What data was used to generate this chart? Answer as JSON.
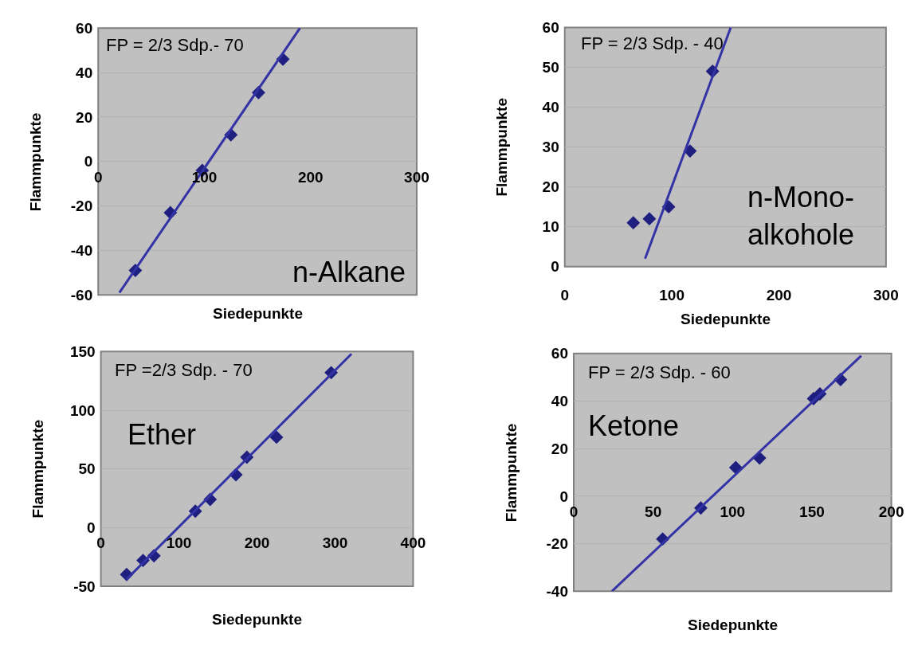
{
  "chart_data": [
    {
      "type": "scatter",
      "xlabel": "Siedepunkte",
      "ylabel": "Flammpunkte",
      "xlim": [
        0,
        300
      ],
      "ylim": [
        -60,
        60
      ],
      "xticks": [
        0,
        100,
        200,
        300
      ],
      "yticks": [
        -60,
        -40,
        -20,
        0,
        20,
        40,
        60
      ],
      "grid": "y",
      "annotations": [
        "FP = 2/3 Sdp.- 70",
        "n-Alkane"
      ],
      "series": [
        {
          "color": "#1f1f80",
          "marker": "diamond",
          "x": [
            35,
            68,
            98,
            125,
            151,
            174
          ],
          "values": [
            -49,
            -23,
            -4,
            12,
            31,
            46
          ]
        },
        {
          "type": "line",
          "color": "#3333a6",
          "x": [
            20,
            190
          ],
          "values": [
            -59,
            60
          ]
        }
      ]
    },
    {
      "type": "scatter",
      "xlabel": "Siedepunkte",
      "ylabel": "Flammpunkte",
      "xlim": [
        0,
        300
      ],
      "ylim": [
        0,
        60
      ],
      "xticks": [
        0,
        100,
        200,
        300
      ],
      "yticks": [
        0,
        10,
        20,
        30,
        40,
        50,
        60
      ],
      "grid": "y",
      "annotations": [
        "FP = 2/3 Sdp. - 40",
        "n-Mono-\nalkohole"
      ],
      "series": [
        {
          "color": "#1f1f80",
          "marker": "diamond",
          "x": [
            64,
            79,
            97,
            117,
            138
          ],
          "values": [
            11,
            12,
            15,
            29,
            49
          ]
        },
        {
          "type": "line",
          "color": "#3333a6",
          "x": [
            75,
            155
          ],
          "values": [
            2,
            60
          ]
        }
      ]
    },
    {
      "type": "scatter",
      "xlabel": "Siedepunkte",
      "ylabel": "Flammpunkte",
      "xlim": [
        0,
        400
      ],
      "ylim": [
        -50,
        150
      ],
      "xticks": [
        0,
        100,
        200,
        300,
        400
      ],
      "yticks": [
        -50,
        0,
        50,
        100,
        150
      ],
      "grid": "y",
      "annotations": [
        "FP =2/3 Sdp. - 70",
        "Ether"
      ],
      "series": [
        {
          "color": "#1f1f80",
          "marker": "diamond",
          "x": [
            33,
            54,
            68,
            121,
            140,
            173,
            187,
            225,
            295
          ],
          "values": [
            -40,
            -28,
            -24,
            14,
            24,
            45,
            60,
            77,
            132
          ]
        },
        {
          "type": "line",
          "color": "#3333a6",
          "x": [
            33,
            321
          ],
          "values": [
            -44,
            148
          ]
        }
      ]
    },
    {
      "type": "scatter",
      "xlabel": "Siedepunkte",
      "ylabel": "Flammpunkte",
      "xlim": [
        0,
        200
      ],
      "ylim": [
        -40,
        60
      ],
      "xticks": [
        0,
        50,
        100,
        150,
        200
      ],
      "yticks": [
        -40,
        -20,
        0,
        20,
        40,
        60
      ],
      "grid": "y",
      "annotations": [
        "FP = 2/3 Sdp. - 60",
        "Ketone"
      ],
      "series": [
        {
          "color": "#1f1f80",
          "marker": "diamond",
          "x": [
            56,
            80,
            102,
            117,
            151,
            155,
            168
          ],
          "values": [
            -18,
            -5,
            12,
            16,
            41,
            43,
            49
          ]
        },
        {
          "type": "line",
          "color": "#3333a6",
          "x": [
            24,
            181
          ],
          "values": [
            -40,
            59
          ]
        }
      ]
    }
  ]
}
